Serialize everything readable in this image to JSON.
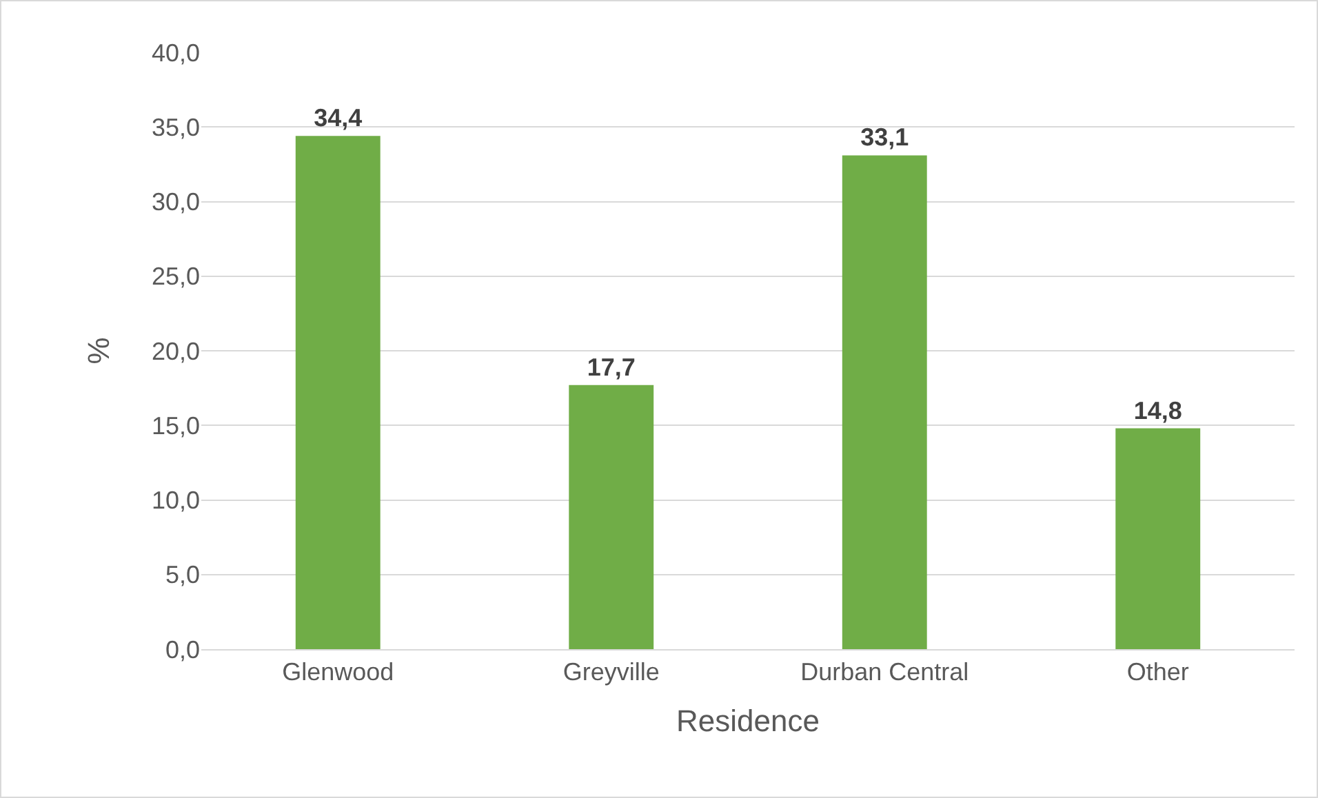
{
  "chart_data": {
    "type": "bar",
    "xlabel": "Residence",
    "ylabel": "%",
    "categories": [
      "Glenwood",
      "Greyville",
      "Durban Central",
      "Other"
    ],
    "values": [
      34.4,
      17.7,
      33.1,
      14.8
    ],
    "value_labels": [
      "34,4",
      "17,7",
      "33,1",
      "14,8"
    ],
    "color": "#70ad47",
    "ylim": [
      0,
      40
    ],
    "yticks": [
      {
        "value": 0,
        "label": "0,0"
      },
      {
        "value": 5,
        "label": "5,0"
      },
      {
        "value": 10,
        "label": "10,0"
      },
      {
        "value": 15,
        "label": "15,0"
      },
      {
        "value": 20,
        "label": "20,0"
      },
      {
        "value": 25,
        "label": "25,0"
      },
      {
        "value": 30,
        "label": "30,0"
      },
      {
        "value": 35,
        "label": "35,0"
      },
      {
        "value": 40,
        "label": "40,0"
      }
    ],
    "grid": "y",
    "legend": false
  }
}
